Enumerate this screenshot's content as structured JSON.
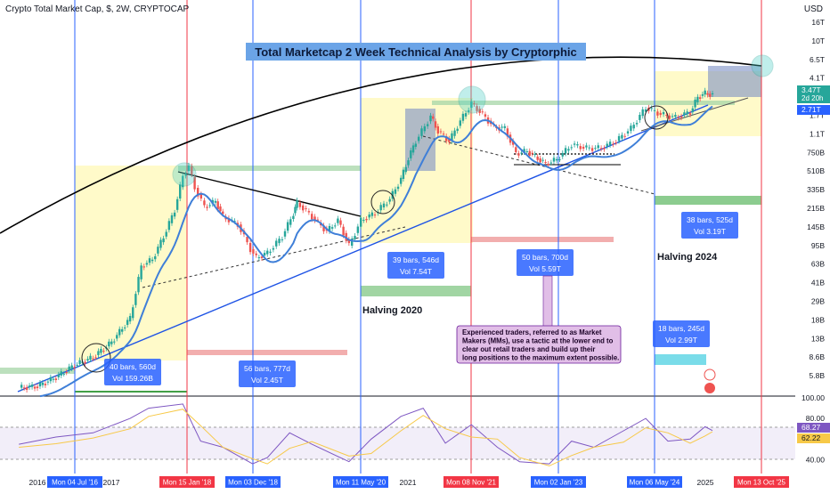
{
  "header": {
    "symbol": "Crypto Total Market Cap, $, 2W, CRYPTOCAP",
    "currency": "USD"
  },
  "chart_data": {
    "type": "candlestick",
    "title": "Total Marketcap 2 Week Technical Analysis by Cryptorphic",
    "price_axis_ticks": [
      "16T",
      "10T",
      "6.5T",
      "4.1T",
      "2.71T",
      "1.7T",
      "1.1T",
      "750B",
      "510B",
      "335B",
      "215B",
      "145B",
      "95B",
      "63B",
      "41B",
      "29B",
      "18B",
      "13B",
      "8.6B",
      "5.8B"
    ],
    "rsi_axis_ticks": [
      "100.00",
      "80.00",
      "40.00"
    ],
    "scale": "log",
    "price_range_usd": [
      5800000000.0,
      16000000000000.0
    ],
    "rsi_range": [
      30,
      100
    ],
    "price_flags": [
      {
        "value": "3.47T",
        "note": "2d 20h",
        "color": "#26a69a"
      },
      {
        "value": "2.71T",
        "note": "",
        "color": "#2962ff"
      }
    ],
    "rsi_flags": [
      {
        "value": "68.27",
        "color": "#7e57c2"
      },
      {
        "value": "62.22",
        "color": "#f7c948"
      }
    ],
    "time_ticks": [
      "2016",
      "2017",
      "2021",
      "2025"
    ],
    "date_flags": [
      {
        "label": "Mon 04 Jul '16",
        "color": "#2962ff"
      },
      {
        "label": "Mon 15 Jan '18",
        "color": "#f23645"
      },
      {
        "label": "Mon 03 Dec '18",
        "color": "#2962ff"
      },
      {
        "label": "Mon 11 May '20",
        "color": "#2962ff"
      },
      {
        "label": "Mon 08 Nov '21",
        "color": "#f23645"
      },
      {
        "label": "Mon 02 Jan '23",
        "color": "#2962ff"
      },
      {
        "label": "Mon 06 May '24",
        "color": "#2962ff"
      },
      {
        "label": "Mon 13 Oct '25",
        "color": "#f23645"
      }
    ],
    "range_labels": [
      {
        "bars": "40 bars, 560d",
        "vol": "Vol 159.26B"
      },
      {
        "bars": "56 bars, 777d",
        "vol": "Vol 2.45T"
      },
      {
        "bars": "39 bars, 546d",
        "vol": "Vol 7.54T"
      },
      {
        "bars": "50 bars, 700d",
        "vol": "Vol 5.59T"
      },
      {
        "bars": "38 bars, 525d",
        "vol": "Vol 3.19T"
      },
      {
        "bars": "18 bars, 245d",
        "vol": "Vol 2.99T"
      }
    ],
    "halvings": [
      "Halving 2020",
      "Halving 2024"
    ],
    "note": "Experienced traders, referred to as Market Makers (MMs), use a tactic at the lower end to clear out retail traders and build up their long positions to the maximum extent possible.",
    "price_series_usd": [
      [
        2015.75,
        6800000000.0
      ],
      [
        2016.0,
        7000000000.0
      ],
      [
        2016.25,
        8500000000.0
      ],
      [
        2016.5,
        11000000000.0
      ],
      [
        2016.75,
        13000000000.0
      ],
      [
        2017.0,
        18000000000.0
      ],
      [
        2017.25,
        30000000000.0
      ],
      [
        2017.4,
        90000000000.0
      ],
      [
        2017.55,
        105000000000.0
      ],
      [
        2017.7,
        170000000000.0
      ],
      [
        2017.85,
        300000000000.0
      ],
      [
        2017.96,
        620000000000.0
      ],
      [
        2018.04,
        760000000000.0
      ],
      [
        2018.12,
        480000000000.0
      ],
      [
        2018.25,
        320000000000.0
      ],
      [
        2018.4,
        360000000000.0
      ],
      [
        2018.5,
        260000000000.0
      ],
      [
        2018.7,
        220000000000.0
      ],
      [
        2018.87,
        130000000000.0
      ],
      [
        2018.95,
        108000000000.0
      ],
      [
        2019.1,
        120000000000.0
      ],
      [
        2019.3,
        170000000000.0
      ],
      [
        2019.45,
        280000000000.0
      ],
      [
        2019.5,
        350000000000.0
      ],
      [
        2019.7,
        260000000000.0
      ],
      [
        2019.9,
        190000000000.0
      ],
      [
        2020.05,
        240000000000.0
      ],
      [
        2020.2,
        140000000000.0
      ],
      [
        2020.36,
        240000000000.0
      ],
      [
        2020.55,
        280000000000.0
      ],
      [
        2020.75,
        380000000000.0
      ],
      [
        2020.9,
        580000000000.0
      ],
      [
        2021.0,
        900000000000.0
      ],
      [
        2021.1,
        1300000000000.0
      ],
      [
        2021.3,
        2200000000000.0
      ],
      [
        2021.4,
        1600000000000.0
      ],
      [
        2021.55,
        1300000000000.0
      ],
      [
        2021.7,
        2000000000000.0
      ],
      [
        2021.85,
        2900000000000.0
      ],
      [
        2022.0,
        2300000000000.0
      ],
      [
        2022.15,
        1750000000000.0
      ],
      [
        2022.3,
        1700000000000.0
      ],
      [
        2022.45,
        1000000000000.0
      ],
      [
        2022.6,
        1050000000000.0
      ],
      [
        2022.85,
        800000000000.0
      ],
      [
        2023.0,
        880000000000.0
      ],
      [
        2023.2,
        1200000000000.0
      ],
      [
        2023.4,
        1120000000000.0
      ],
      [
        2023.6,
        1120000000000.0
      ],
      [
        2023.8,
        1300000000000.0
      ],
      [
        2024.0,
        1700000000000.0
      ],
      [
        2024.2,
        2650000000000.0
      ],
      [
        2024.4,
        2300000000000.0
      ],
      [
        2024.6,
        2150000000000.0
      ],
      [
        2024.8,
        2400000000000.0
      ],
      [
        2024.9,
        3300000000000.0
      ],
      [
        2025.0,
        3600000000000.0
      ],
      [
        2025.1,
        3470000000000.0
      ]
    ],
    "rsi_series": [
      [
        2015.75,
        55
      ],
      [
        2016.25,
        62
      ],
      [
        2016.75,
        66
      ],
      [
        2017.25,
        80
      ],
      [
        2017.5,
        90
      ],
      [
        2017.96,
        94
      ],
      [
        2018.2,
        58
      ],
      [
        2018.5,
        52
      ],
      [
        2018.9,
        36
      ],
      [
        2019.1,
        42
      ],
      [
        2019.4,
        66
      ],
      [
        2019.7,
        55
      ],
      [
        2020.2,
        38
      ],
      [
        2020.5,
        60
      ],
      [
        2020.9,
        82
      ],
      [
        2021.2,
        90
      ],
      [
        2021.5,
        56
      ],
      [
        2021.85,
        74
      ],
      [
        2022.2,
        52
      ],
      [
        2022.5,
        38
      ],
      [
        2022.9,
        36
      ],
      [
        2023.2,
        58
      ],
      [
        2023.5,
        52
      ],
      [
        2023.9,
        68
      ],
      [
        2024.2,
        80
      ],
      [
        2024.5,
        58
      ],
      [
        2024.8,
        60
      ],
      [
        2025.0,
        72
      ],
      [
        2025.1,
        68.27
      ]
    ]
  }
}
